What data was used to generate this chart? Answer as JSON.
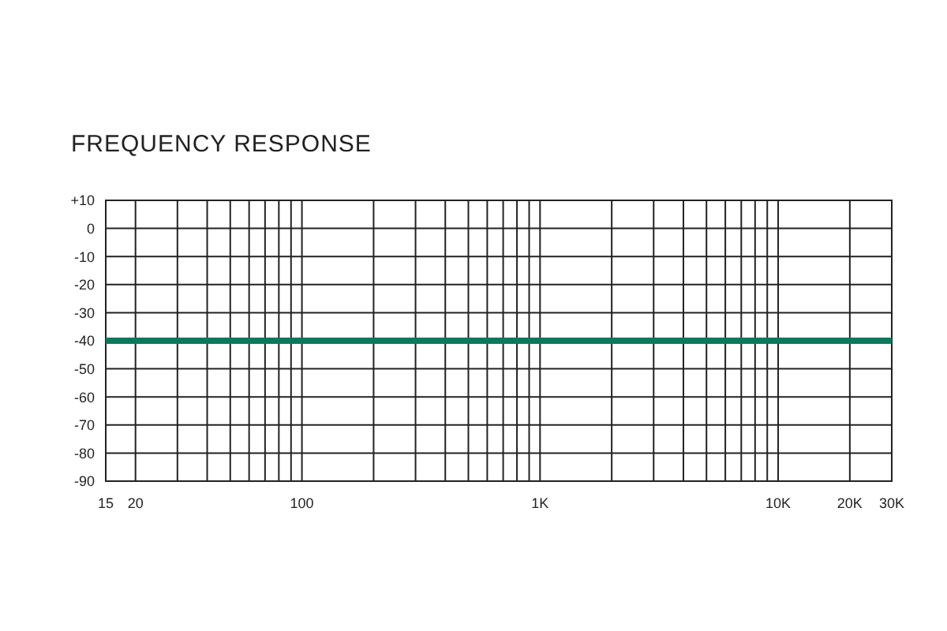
{
  "chart_data": {
    "type": "line",
    "title": "FREQUENCY RESPONSE",
    "log": "x",
    "grid": true,
    "marker": "none",
    "line_style": "solid",
    "xlim": [
      15,
      30000
    ],
    "xticks": [
      15,
      20,
      {
        "value": 30,
        "label": null
      },
      {
        "value": 40,
        "label": null
      },
      {
        "value": 50,
        "label": null
      },
      {
        "value": 60,
        "label": null
      },
      {
        "value": 70,
        "label": null
      },
      {
        "value": 80,
        "label": null
      },
      {
        "value": 90,
        "label": null
      },
      100,
      {
        "value": 200,
        "label": null
      },
      {
        "value": 300,
        "label": null
      },
      {
        "value": 400,
        "label": null
      },
      {
        "value": 500,
        "label": null
      },
      {
        "value": 600,
        "label": null
      },
      {
        "value": 700,
        "label": null
      },
      {
        "value": 800,
        "label": null
      },
      {
        "value": 900,
        "label": null
      },
      {
        "value": 1000,
        "label": "1K"
      },
      {
        "value": 2000,
        "label": null
      },
      {
        "value": 3000,
        "label": null
      },
      {
        "value": 4000,
        "label": null
      },
      {
        "value": 5000,
        "label": null
      },
      {
        "value": 6000,
        "label": null
      },
      {
        "value": 7000,
        "label": null
      },
      {
        "value": 8000,
        "label": null
      },
      {
        "value": 9000,
        "label": null
      },
      {
        "value": 10000,
        "label": "10K"
      },
      {
        "value": 20000,
        "label": "20K"
      },
      {
        "value": 30000,
        "label": "30K"
      }
    ],
    "ylim": [
      -90,
      10
    ],
    "yticks": [
      -90,
      -80,
      -70,
      -60,
      -50,
      -40,
      -30,
      -20,
      -10,
      0,
      {
        "value": 10,
        "label": "+10"
      }
    ],
    "series": [
      {
        "color": "#0b7a5c",
        "x": [
          15,
          30000
        ],
        "values": [
          -40,
          -40
        ]
      }
    ]
  }
}
